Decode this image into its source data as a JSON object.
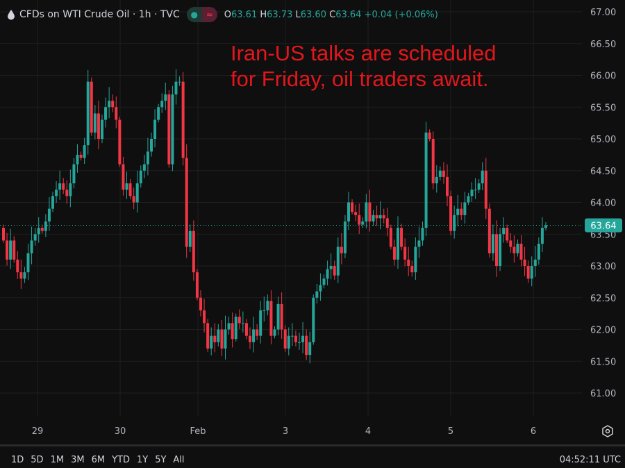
{
  "header": {
    "symbol_icon": "droplet-icon",
    "title": "CFDs on WTI Crude Oil · 1h · TVC",
    "status_icons": [
      "market-open-dot-icon",
      "wave-icon"
    ],
    "ohlc": {
      "o_label": "O",
      "o": "63.61",
      "h_label": "H",
      "h": "63.73",
      "l_label": "L",
      "l": "63.60",
      "c_label": "C",
      "c": "63.64",
      "change": "+0.04 (+0.06%)"
    }
  },
  "annotation": {
    "line1": "Iran-US talks are scheduled",
    "line2": "for Friday, oil traders await."
  },
  "colors": {
    "up": "#26a69a",
    "down": "#f23645",
    "annotation": "#e3161c",
    "background": "#0f0f0f",
    "grid": "#1f1f1f"
  },
  "chart_data": {
    "type": "candlestick",
    "interval": "1h",
    "ylim": [
      60.6,
      67.1
    ],
    "y_ticks": [
      "67.00",
      "66.50",
      "66.00",
      "65.50",
      "65.00",
      "64.50",
      "64.00",
      "63.50",
      "63.00",
      "62.50",
      "62.00",
      "61.50",
      "61.00"
    ],
    "x_ticks": [
      "29",
      "30",
      "Feb",
      "3",
      "4",
      "5",
      "6"
    ],
    "last_price": "63.64",
    "grid": true,
    "close": [
      63.4,
      63.1,
      63.4,
      63.1,
      62.9,
      62.8,
      62.9,
      63.2,
      63.4,
      63.5,
      63.6,
      63.55,
      63.7,
      63.9,
      64.1,
      64.2,
      64.3,
      64.2,
      64.1,
      64.3,
      64.6,
      64.75,
      64.7,
      64.9,
      65.9,
      65.1,
      65.4,
      65.0,
      65.3,
      65.5,
      65.6,
      65.5,
      65.3,
      64.6,
      64.2,
      64.3,
      64.1,
      64.0,
      64.3,
      64.5,
      64.6,
      64.8,
      65.0,
      65.3,
      65.5,
      65.6,
      65.7,
      64.6,
      65.7,
      65.9,
      65.9,
      64.7,
      63.3,
      63.55,
      62.9,
      62.5,
      62.3,
      62.1,
      61.7,
      61.9,
      61.8,
      62.0,
      61.7,
      62.0,
      62.1,
      61.85,
      62.2,
      62.1,
      62.1,
      61.9,
      61.8,
      62.0,
      61.9,
      62.3,
      62.3,
      62.45,
      61.9,
      62.0,
      62.4,
      62.0,
      61.7,
      61.9,
      61.9,
      61.8,
      61.8,
      61.9,
      61.6,
      61.8,
      62.5,
      62.6,
      62.7,
      62.8,
      62.95,
      63.0,
      62.85,
      63.3,
      63.2,
      63.7,
      64.0,
      63.85,
      63.8,
      63.65,
      63.7,
      64.0,
      63.7,
      63.8,
      63.75,
      63.8,
      63.75,
      63.6,
      63.3,
      63.1,
      63.6,
      63.3,
      63.1,
      63.0,
      62.9,
      63.3,
      63.4,
      63.6,
      65.1,
      65.0,
      64.3,
      64.4,
      64.5,
      64.4,
      64.1,
      63.55,
      63.8,
      63.9,
      63.8,
      64.0,
      64.1,
      64.2,
      64.2,
      64.3,
      64.5,
      63.9,
      63.2,
      63.5,
      63.0,
      63.5,
      63.6,
      63.4,
      63.3,
      63.2,
      63.35,
      63.1,
      63.0,
      62.8,
      63.0,
      63.1,
      63.35,
      63.6,
      63.64
    ]
  },
  "range_buttons": [
    "1D",
    "5D",
    "1M",
    "3M",
    "6M",
    "YTD",
    "1Y",
    "5Y",
    "All"
  ],
  "clock": "04:52:11 UTC",
  "settings_icon": "gear-icon"
}
